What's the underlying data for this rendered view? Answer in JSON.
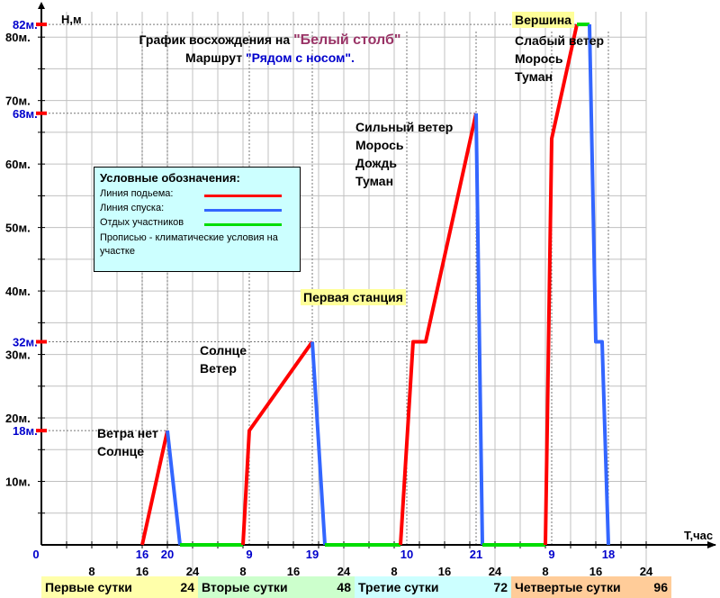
{
  "title": {
    "line1_prefix": "График восхождения на ",
    "line1_name": "\"Белый столб\"",
    "line2_prefix": "Маршрут ",
    "line2_name": "\"Рядом с носом\"."
  },
  "colors": {
    "ascent": "#ff0000",
    "descent": "#3366ff",
    "rest": "#00dd00",
    "legend_bg": "#ccffff",
    "highlight": "#ffff99",
    "day1": "#ffffaa",
    "day2": "#ccffcc",
    "day3": "#ccffff",
    "day4": "#ffcc99",
    "blue_text": "#0000cc",
    "title_name": "#993366"
  },
  "legend": {
    "title": "Условные обозначения:",
    "ascent": "Линия подьема:",
    "descent": "Линия спуска:",
    "rest": "Отдых участников",
    "note": "Прописью - климатические условия на участке"
  },
  "annotations": {
    "a1_l1": "Ветра нет",
    "a1_l2": "Солнце",
    "a2_l1": "Солнце",
    "a2_l2": "Ветер",
    "a3_l1": "Сильный ветер",
    "a3_l2": "Морось",
    "a3_l3": "Дождь",
    "a3_l4": "Туман",
    "a4_l2": "Слабый ветер",
    "a4_l3": "Морось",
    "a4_l4": "Туман",
    "first_station": "Первая станция",
    "summit": "Вершина"
  },
  "days": {
    "d1": "Первые сутки",
    "d1_end": "24",
    "d2": "Вторые сутки",
    "d2_end": "48",
    "d3": "Третие сутки",
    "d3_end": "72",
    "d4": "Четвертые сутки",
    "d4_end": "96"
  },
  "chart_data": {
    "type": "line",
    "xlabel": "T,час",
    "ylabel": "Н,м",
    "xlim": [
      0,
      100
    ],
    "ylim": [
      0,
      84
    ],
    "x_tick_labels": [
      {
        "x": 8,
        "label": "8"
      },
      {
        "x": 16,
        "label": "16"
      },
      {
        "x": 24,
        "label": "24"
      },
      {
        "x": 32,
        "label": "8"
      },
      {
        "x": 40,
        "label": "16"
      },
      {
        "x": 48,
        "label": "24"
      },
      {
        "x": 56,
        "label": "8"
      },
      {
        "x": 64,
        "label": "16"
      },
      {
        "x": 72,
        "label": "24"
      },
      {
        "x": 80,
        "label": "8"
      },
      {
        "x": 88,
        "label": "16"
      },
      {
        "x": 96,
        "label": "24"
      }
    ],
    "x_marked_labels": [
      {
        "x": 0,
        "label": "0"
      },
      {
        "x": 16,
        "label": "16"
      },
      {
        "x": 20,
        "label": "20"
      },
      {
        "x": 33,
        "label": "9"
      },
      {
        "x": 43,
        "label": "19"
      },
      {
        "x": 58,
        "label": "10"
      },
      {
        "x": 69,
        "label": "21"
      },
      {
        "x": 81,
        "label": "9"
      },
      {
        "x": 90,
        "label": "18"
      }
    ],
    "y_tick_labels": [
      {
        "y": 10,
        "label": "10м."
      },
      {
        "y": 20,
        "label": "20м."
      },
      {
        "y": 30,
        "label": "30м."
      },
      {
        "y": 40,
        "label": "40м."
      },
      {
        "y": 50,
        "label": "50м."
      },
      {
        "y": 60,
        "label": "60м."
      },
      {
        "y": 70,
        "label": "70м."
      },
      {
        "y": 80,
        "label": "80м."
      }
    ],
    "y_marked_labels": [
      {
        "y": 18,
        "label": "18м."
      },
      {
        "y": 32,
        "label": "32м."
      },
      {
        "y": 68,
        "label": "68м."
      },
      {
        "y": 82,
        "label": "82м."
      }
    ],
    "series": [
      {
        "kind": "ascent",
        "points": [
          [
            16,
            0
          ],
          [
            20,
            18
          ]
        ]
      },
      {
        "kind": "descent",
        "points": [
          [
            20,
            18
          ],
          [
            22,
            0
          ]
        ]
      },
      {
        "kind": "rest",
        "points": [
          [
            22,
            0
          ],
          [
            32,
            0
          ]
        ]
      },
      {
        "kind": "ascent",
        "points": [
          [
            32,
            0
          ],
          [
            33,
            18
          ],
          [
            43,
            32
          ]
        ]
      },
      {
        "kind": "descent",
        "points": [
          [
            43,
            32
          ],
          [
            45,
            0
          ]
        ]
      },
      {
        "kind": "rest",
        "points": [
          [
            45,
            0
          ],
          [
            57,
            0
          ]
        ]
      },
      {
        "kind": "ascent",
        "points": [
          [
            57,
            0
          ],
          [
            59,
            32
          ],
          [
            61,
            32
          ],
          [
            69,
            68
          ]
        ]
      },
      {
        "kind": "descent",
        "points": [
          [
            69,
            68
          ],
          [
            70,
            0
          ]
        ]
      },
      {
        "kind": "rest",
        "points": [
          [
            70,
            0
          ],
          [
            80,
            0
          ]
        ]
      },
      {
        "kind": "ascent",
        "points": [
          [
            80,
            0
          ],
          [
            81,
            64
          ],
          [
            85,
            82
          ]
        ]
      },
      {
        "kind": "rest",
        "points": [
          [
            85,
            82
          ],
          [
            87,
            82
          ]
        ]
      },
      {
        "kind": "descent",
        "points": [
          [
            87,
            82
          ],
          [
            88,
            32
          ],
          [
            89,
            32
          ],
          [
            90,
            0
          ]
        ]
      }
    ]
  }
}
